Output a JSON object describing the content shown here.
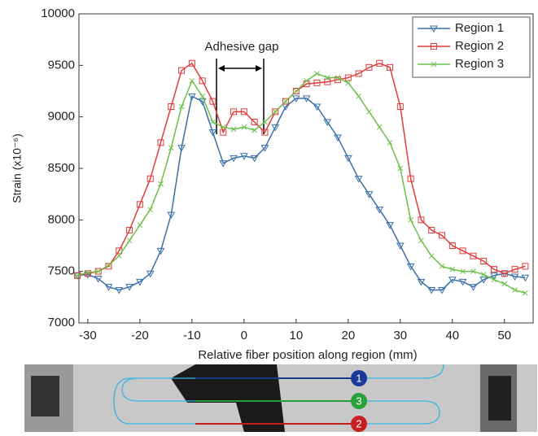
{
  "chart_data": {
    "type": "line",
    "y_label": "Strain (x10⁻⁶)",
    "x_label": "Relative fiber position along region (mm)",
    "annotation": "Adhesive gap",
    "x": [
      -32,
      -30,
      -28,
      -26,
      -24,
      -22,
      -20,
      -18,
      -16,
      -14,
      -12,
      -10,
      -8,
      -6,
      -4,
      -2,
      0,
      2,
      4,
      6,
      8,
      10,
      12,
      14,
      16,
      18,
      20,
      22,
      24,
      26,
      28,
      30,
      32,
      34,
      36,
      38,
      40,
      42,
      44,
      46,
      48,
      50,
      52,
      54
    ],
    "series": [
      {
        "name": "Region 1",
        "color": "#3a6fa8",
        "marker": "triangle-down",
        "values": [
          7460,
          7470,
          7430,
          7350,
          7320,
          7350,
          7400,
          7480,
          7700,
          8050,
          8700,
          9200,
          9150,
          8850,
          8550,
          8600,
          8620,
          8600,
          8700,
          8900,
          9100,
          9180,
          9180,
          9100,
          8950,
          8800,
          8600,
          8400,
          8250,
          8100,
          7950,
          7750,
          7550,
          7400,
          7320,
          7320,
          7420,
          7400,
          7350,
          7420,
          7460,
          7480,
          7450,
          7440
        ]
      },
      {
        "name": "Region 2",
        "color": "#e23b3b",
        "marker": "square",
        "values": [
          7460,
          7480,
          7500,
          7550,
          7700,
          7900,
          8150,
          8400,
          8750,
          9100,
          9450,
          9520,
          9350,
          9150,
          8850,
          9050,
          9050,
          8950,
          8850,
          9050,
          9150,
          9250,
          9320,
          9330,
          9340,
          9360,
          9380,
          9420,
          9480,
          9520,
          9480,
          9100,
          8400,
          8000,
          7900,
          7850,
          7750,
          7700,
          7650,
          7600,
          7520,
          7480,
          7520,
          7550
        ]
      },
      {
        "name": "Region 3",
        "color": "#6cc04a",
        "marker": "x",
        "values": [
          7460,
          7490,
          7500,
          7560,
          7650,
          7800,
          7950,
          8100,
          8350,
          8700,
          9100,
          9350,
          9200,
          8950,
          8900,
          8880,
          8900,
          8870,
          8950,
          9050,
          9150,
          9250,
          9350,
          9420,
          9380,
          9380,
          9330,
          9200,
          9050,
          8900,
          8750,
          8500,
          8000,
          7800,
          7650,
          7550,
          7520,
          7500,
          7500,
          7470,
          7420,
          7380,
          7320,
          7290
        ]
      }
    ],
    "xlim": [
      -31.7,
      55.5
    ],
    "ylim": [
      7000,
      10000
    ],
    "xticks": [
      -30,
      -20,
      -10,
      0,
      10,
      20,
      30,
      40,
      50
    ],
    "yticks": [
      7000,
      7500,
      8000,
      8500,
      9000,
      9500,
      10000
    ],
    "legend": "top-right"
  },
  "photo": {
    "labels": [
      "1",
      "3",
      "2"
    ]
  }
}
